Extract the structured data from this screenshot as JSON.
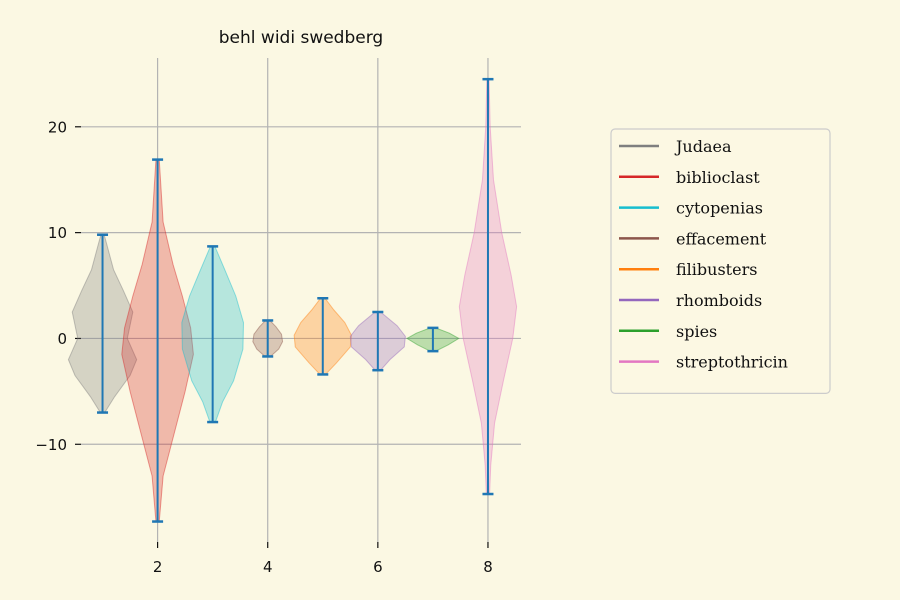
{
  "chart_data": {
    "type": "violin",
    "title": "behl widi swedberg",
    "xlabel": "",
    "ylabel": "",
    "xlim": [
      0.5,
      8.6
    ],
    "ylim": [
      -19.8,
      26.5
    ],
    "xticks": [
      2,
      4,
      6,
      8
    ],
    "yticks": [
      -10,
      0,
      10,
      20
    ],
    "grid": true,
    "legend_position": "right",
    "series": [
      {
        "name": "Judaea",
        "x": 1,
        "color": "#7f7f7f",
        "min": -7.0,
        "max": 9.8,
        "profile": [
          [
            -7.0,
            0.04
          ],
          [
            -5.5,
            0.22
          ],
          [
            -3.5,
            0.5
          ],
          [
            -2.0,
            0.62
          ],
          [
            0,
            0.45
          ],
          [
            2.5,
            0.55
          ],
          [
            4.5,
            0.38
          ],
          [
            6.5,
            0.2
          ],
          [
            9.8,
            0.03
          ]
        ]
      },
      {
        "name": "biblioclast",
        "x": 2,
        "color": "#d62728",
        "min": -17.3,
        "max": 16.9,
        "profile": [
          [
            -17.3,
            0.03
          ],
          [
            -13,
            0.1
          ],
          [
            -9,
            0.3
          ],
          [
            -5,
            0.5
          ],
          [
            -1.5,
            0.65
          ],
          [
            1,
            0.6
          ],
          [
            4,
            0.45
          ],
          [
            7,
            0.28
          ],
          [
            11,
            0.1
          ],
          [
            16.9,
            0.03
          ]
        ]
      },
      {
        "name": "cytopenias",
        "x": 3,
        "color": "#17becf",
        "min": -7.9,
        "max": 8.7,
        "profile": [
          [
            -7.9,
            0.05
          ],
          [
            -6,
            0.18
          ],
          [
            -4,
            0.38
          ],
          [
            -1,
            0.55
          ],
          [
            1.5,
            0.56
          ],
          [
            4,
            0.42
          ],
          [
            6.5,
            0.22
          ],
          [
            8.7,
            0.04
          ]
        ]
      },
      {
        "name": "effacement",
        "x": 4,
        "color": "#8c564b",
        "min": -1.7,
        "max": 1.7,
        "profile": [
          [
            -1.7,
            0.05
          ],
          [
            -1,
            0.2
          ],
          [
            -0.3,
            0.27
          ],
          [
            0.4,
            0.25
          ],
          [
            1.1,
            0.15
          ],
          [
            1.7,
            0.04
          ]
        ]
      },
      {
        "name": "filibusters",
        "x": 5,
        "color": "#ff7f0e",
        "min": -3.4,
        "max": 3.8,
        "profile": [
          [
            -3.4,
            0.05
          ],
          [
            -2.3,
            0.25
          ],
          [
            -0.8,
            0.5
          ],
          [
            0.3,
            0.52
          ],
          [
            1.5,
            0.4
          ],
          [
            2.7,
            0.2
          ],
          [
            3.8,
            0.04
          ]
        ]
      },
      {
        "name": "rhomboids",
        "x": 6,
        "color": "#9467bd",
        "min": -3.0,
        "max": 2.5,
        "profile": [
          [
            -3.0,
            0.05
          ],
          [
            -2,
            0.22
          ],
          [
            -0.8,
            0.48
          ],
          [
            0.2,
            0.5
          ],
          [
            1.2,
            0.35
          ],
          [
            2.5,
            0.05
          ]
        ]
      },
      {
        "name": "spies",
        "x": 7,
        "color": "#2ca02c",
        "min": -1.2,
        "max": 1.0,
        "profile": [
          [
            -1.2,
            0.05
          ],
          [
            -0.6,
            0.28
          ],
          [
            0,
            0.47
          ],
          [
            0.5,
            0.3
          ],
          [
            1.0,
            0.05
          ]
        ]
      },
      {
        "name": "streptothricin",
        "x": 8,
        "color": "#e377c2",
        "min": -14.7,
        "max": 24.5,
        "profile": [
          [
            -14.7,
            0.03
          ],
          [
            -12,
            0.05
          ],
          [
            -8,
            0.12
          ],
          [
            -4,
            0.28
          ],
          [
            0,
            0.45
          ],
          [
            3,
            0.52
          ],
          [
            6,
            0.42
          ],
          [
            10,
            0.25
          ],
          [
            15,
            0.1
          ],
          [
            20,
            0.04
          ],
          [
            24.5,
            0.02
          ]
        ]
      }
    ]
  },
  "style": {
    "background": "#fbf8e3",
    "grid_color": "#b3b3b3",
    "extrema_color": "#1f77b4",
    "legend_border": "#cccccc"
  }
}
